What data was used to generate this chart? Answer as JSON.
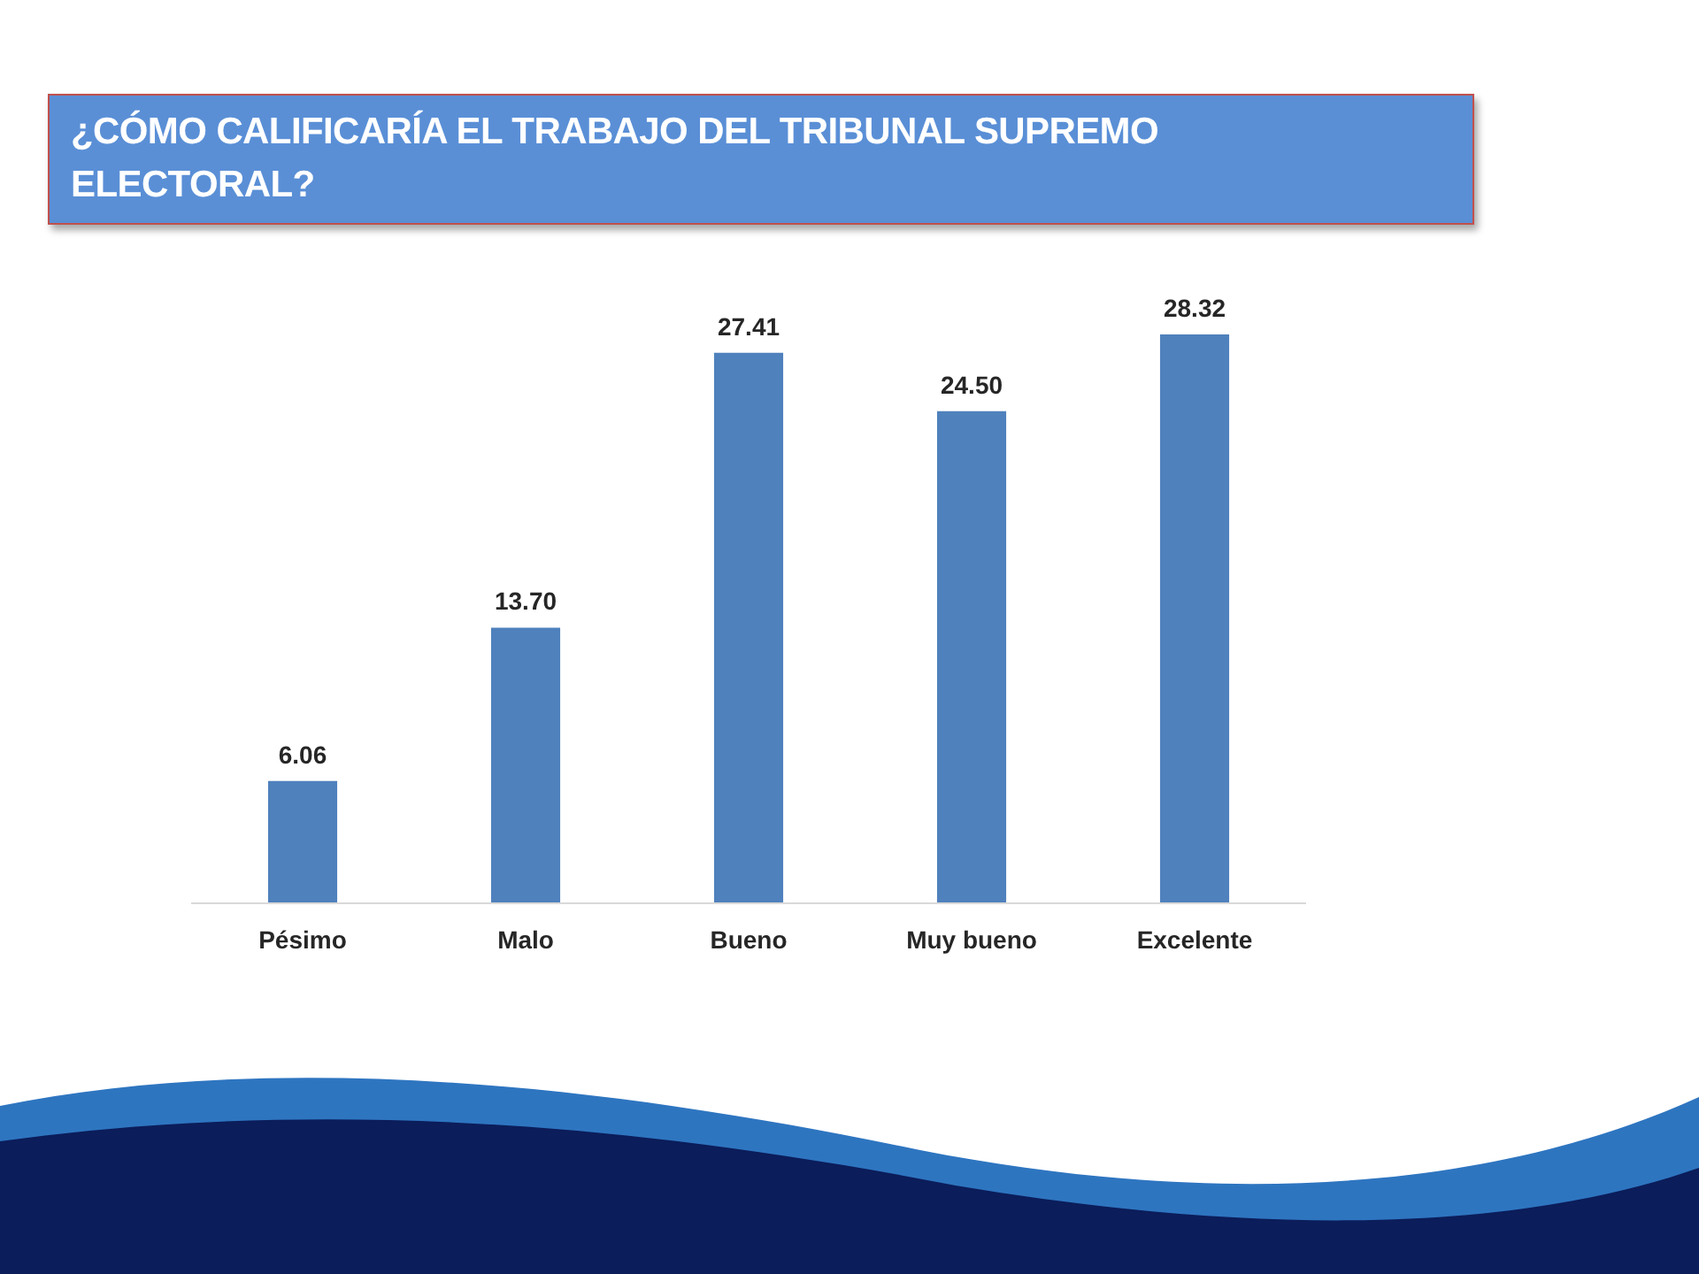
{
  "chart_data": {
    "type": "bar",
    "title": "¿CÓMO CALIFICARÍA EL TRABAJO DEL TRIBUNAL SUPREMO ELECTORAL?",
    "categories": [
      "Pésimo",
      "Malo",
      "Bueno",
      "Muy bueno",
      "Excelente"
    ],
    "values": [
      6.06,
      13.7,
      27.41,
      24.5,
      28.32
    ],
    "value_labels": [
      "6.06",
      "13.70",
      "27.41",
      "24.50",
      "28.32"
    ],
    "color": "#4f81bd",
    "tick_labels": "x"
  }
}
